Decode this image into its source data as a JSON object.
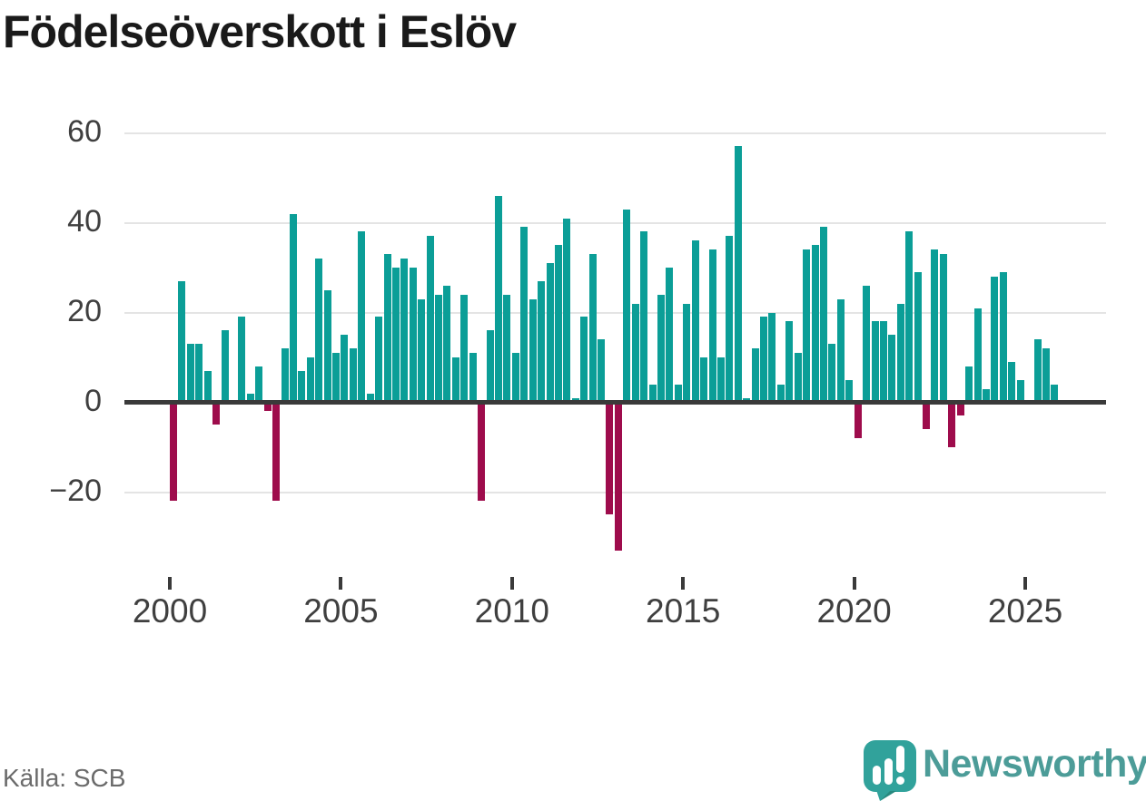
{
  "header": {
    "title": "Födelseöverskott i Eslöv"
  },
  "footer": {
    "source": "Källa: SCB",
    "brand": "Newsworthy"
  },
  "colors": {
    "positive": "#0b9e97",
    "negative": "#9e0c4c",
    "axis": "#3a3a3a",
    "gridline": "#e4e4e4",
    "tick_text": "#3f3f3f",
    "title_text": "#1a1a1a",
    "source_text": "#6b6b6b",
    "brand_teal": "#4c9c98",
    "brand_icon": "#31a29b",
    "brand_icon_fold": "#28897f"
  },
  "chart_data": {
    "type": "bar",
    "title": "Födelseöverskott i Eslöv",
    "xlabel": "",
    "ylabel": "",
    "start_year": 2000,
    "frequency": "quarterly",
    "x_tick_labels": [
      "2000",
      "2005",
      "2010",
      "2015",
      "2020",
      "2025"
    ],
    "y_ticks": [
      60,
      40,
      20,
      0,
      -20
    ],
    "y_tick_labels": [
      "60",
      "40",
      "20",
      "0",
      "−20"
    ],
    "ylim": [
      -35,
      62
    ],
    "grid": true,
    "legend": false,
    "positive_color": "#0b9e97",
    "negative_color": "#9e0c4c",
    "values": [
      -22,
      27,
      13,
      13,
      7,
      -5,
      16,
      0,
      19,
      2,
      8,
      -2,
      -22,
      12,
      42,
      7,
      10,
      32,
      25,
      11,
      15,
      12,
      38,
      2,
      19,
      33,
      30,
      32,
      30,
      23,
      37,
      24,
      26,
      10,
      24,
      11,
      -22,
      16,
      46,
      24,
      11,
      39,
      23,
      27,
      31,
      35,
      41,
      1,
      19,
      33,
      14,
      -25,
      -33,
      43,
      22,
      38,
      4,
      24,
      30,
      4,
      22,
      36,
      10,
      34,
      10,
      37,
      57,
      1,
      12,
      19,
      20,
      4,
      18,
      11,
      34,
      35,
      39,
      13,
      23,
      5,
      -8,
      26,
      18,
      18,
      15,
      22,
      38,
      29,
      -6,
      34,
      33,
      -10,
      -3,
      8,
      21,
      3,
      28,
      29,
      9,
      5,
      0,
      14,
      12,
      4
    ]
  }
}
